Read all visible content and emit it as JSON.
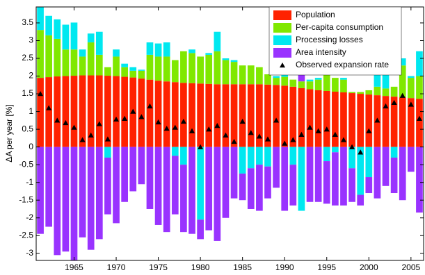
{
  "chart_data": {
    "type": "bar",
    "stacked": true,
    "ylabel": "ΔA per year [%]",
    "x": [
      1961,
      1962,
      1963,
      1964,
      1965,
      1966,
      1967,
      1968,
      1969,
      1970,
      1971,
      1972,
      1973,
      1974,
      1975,
      1976,
      1977,
      1978,
      1979,
      1980,
      1981,
      1982,
      1983,
      1984,
      1985,
      1986,
      1987,
      1988,
      1989,
      1990,
      1991,
      1992,
      1993,
      1994,
      1995,
      1996,
      1997,
      1998,
      1999,
      2000,
      2001,
      2002,
      2003,
      2004,
      2005,
      2006
    ],
    "xlim": [
      1960.5,
      2006.5
    ],
    "xticks": [
      1965,
      1970,
      1975,
      1980,
      1985,
      1990,
      1995,
      2000,
      2005
    ],
    "ylim": [
      -3.2,
      3.95
    ],
    "yticks": [
      -3,
      -2.5,
      -2,
      -1.5,
      -1,
      -0.5,
      0,
      0.5,
      1,
      1.5,
      2,
      2.5,
      3,
      3.5
    ],
    "legend": "upper right",
    "series": [
      {
        "name": "Population",
        "color": "#ff2200",
        "values": [
          1.95,
          1.97,
          1.99,
          2.0,
          2.01,
          2.02,
          2.02,
          2.02,
          2.01,
          2.0,
          1.98,
          1.96,
          1.93,
          1.9,
          1.87,
          1.85,
          1.83,
          1.81,
          1.8,
          1.79,
          1.78,
          1.77,
          1.77,
          1.77,
          1.77,
          1.77,
          1.77,
          1.76,
          1.75,
          1.73,
          1.7,
          1.66,
          1.63,
          1.6,
          1.58,
          1.56,
          1.54,
          1.52,
          1.5,
          1.48,
          1.46,
          1.44,
          1.42,
          1.4,
          1.38,
          1.36
        ]
      },
      {
        "name": "Per-capita consumption",
        "color": "#80e800",
        "values": [
          1.35,
          1.18,
          1.06,
          0.75,
          0.74,
          0.53,
          0.93,
          0.58,
          0.24,
          0.55,
          0.27,
          0.19,
          0.22,
          0.7,
          0.68,
          0.7,
          0.62,
          0.89,
          0.85,
          0.76,
          0.82,
          0.93,
          0.68,
          0.63,
          0.53,
          0.53,
          0.48,
          0.29,
          0.2,
          0.25,
          0.2,
          0.19,
          0.22,
          0.3,
          0.52,
          0.39,
          0.36,
          0.03,
          0.05,
          0.12,
          0.24,
          0.21,
          0.28,
          0.9,
          0.57,
          0.64
        ]
      },
      {
        "name": "Processing losses",
        "color": "#00e8f0",
        "values": [
          0.65,
          0.55,
          0.55,
          0.7,
          0.76,
          0.2,
          0.25,
          0.65,
          -0.3,
          0.2,
          0.1,
          0.1,
          0.03,
          0.35,
          0.37,
          0.4,
          -0.25,
          -0.5,
          0.1,
          -2.05,
          0.05,
          0.55,
          0.05,
          0.05,
          -0.75,
          -0.6,
          -0.5,
          -0.55,
          0.05,
          0.4,
          -0.5,
          -1.8,
          0.05,
          0.05,
          -0.4,
          -0.15,
          0.05,
          -0.6,
          -1.35,
          -0.85,
          0.55,
          0.6,
          -0.3,
          0.2,
          0.05,
          0.7
        ]
      },
      {
        "name": "Area intensity",
        "color": "#9933ff",
        "values": [
          -2.45,
          -2.25,
          -3.05,
          -2.95,
          -3.2,
          -2.55,
          -2.9,
          -2.6,
          -1.6,
          -2.15,
          -1.55,
          -1.25,
          -1.05,
          -1.75,
          -2.2,
          -2.4,
          -1.65,
          -1.9,
          -2.45,
          -0.55,
          -2.35,
          -2.65,
          -2.0,
          -1.45,
          -0.75,
          -1.15,
          -1.3,
          -0.9,
          -1.15,
          -1.8,
          -1.15,
          0.28,
          -1.55,
          -1.55,
          -1.2,
          -1.5,
          -1.65,
          -0.95,
          -0.3,
          -0.45,
          -1.45,
          -1.1,
          -1.0,
          -1.5,
          -0.7,
          -1.85
        ]
      },
      {
        "name": "Observed expansion rate",
        "type": "scatter",
        "color": "#000000",
        "values": [
          1.5,
          1.1,
          0.75,
          0.68,
          0.55,
          0.2,
          0.33,
          0.65,
          0.22,
          0.78,
          0.8,
          1.0,
          0.85,
          1.15,
          0.7,
          0.52,
          0.55,
          0.72,
          0.45,
          0.0,
          0.5,
          0.6,
          0.33,
          0.15,
          0.72,
          0.4,
          0.3,
          0.22,
          0.75,
          0.1,
          0.2,
          0.35,
          0.55,
          0.45,
          0.5,
          0.35,
          0.2,
          0.0,
          -0.15,
          0.45,
          0.75,
          1.15,
          1.25,
          1.45,
          1.2,
          0.8
        ]
      }
    ]
  }
}
